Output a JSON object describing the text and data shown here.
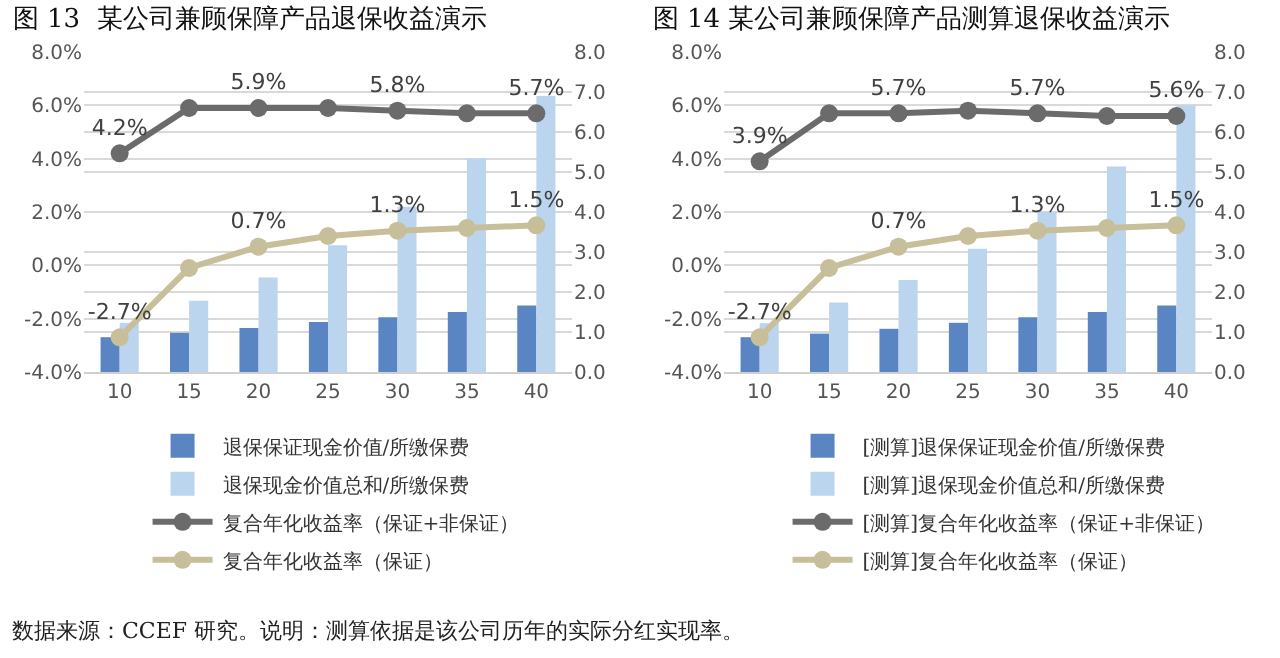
{
  "chart_data": [
    {
      "type": "bar",
      "title": "图 13  某公司兼顾保障产品退保收益演示",
      "categories": [
        "10",
        "15",
        "20",
        "25",
        "30",
        "35",
        "40"
      ],
      "series": [
        {
          "name": "退保保证现金价值/所缴保费",
          "axis": "y2",
          "color": "#5a85c3",
          "values": [
            0.87,
            0.98,
            1.1,
            1.25,
            1.37,
            1.5,
            1.66
          ]
        },
        {
          "name": "退保现金价值总和/所缴保费",
          "axis": "y2",
          "color": "#bcd5ee",
          "values": [
            1.23,
            1.78,
            2.36,
            3.17,
            4.13,
            5.34,
            6.9
          ]
        },
        {
          "name": "复合年化收益率（保证+非保证）",
          "type": "line",
          "axis": "y",
          "color": "#6b6b6b",
          "values": [
            4.2,
            5.9,
            5.9,
            5.9,
            5.8,
            5.7,
            5.7
          ],
          "value_labels": [
            "4.2%",
            null,
            "5.9%",
            null,
            "5.8%",
            null,
            "5.7%"
          ]
        },
        {
          "name": "复合年化收益率（保证）",
          "type": "line",
          "axis": "y",
          "color": "#c6bf9a",
          "values": [
            -2.7,
            -0.1,
            0.7,
            1.1,
            1.3,
            1.4,
            1.5
          ],
          "value_labels": [
            "-2.7%",
            null,
            "0.7%",
            null,
            "1.3%",
            null,
            "1.5%"
          ]
        }
      ],
      "ylim": [
        -4,
        8
      ],
      "yticks": [
        {
          "value": -4,
          "label": "-4.0%"
        },
        {
          "value": -2,
          "label": "-2.0%"
        },
        {
          "value": 0,
          "label": "0.0%"
        },
        {
          "value": 2,
          "label": "2.0%"
        },
        {
          "value": 4,
          "label": "4.0%"
        },
        {
          "value": 6,
          "label": "6.0%"
        },
        {
          "value": 8,
          "label": "8.0%"
        }
      ],
      "y2lim": [
        0,
        8
      ],
      "y2ticks": [
        {
          "value": 0,
          "label": "0.0"
        },
        {
          "value": 1,
          "label": "1.0"
        },
        {
          "value": 2,
          "label": "2.0"
        },
        {
          "value": 3,
          "label": "3.0"
        },
        {
          "value": 4,
          "label": "4.0"
        },
        {
          "value": 5,
          "label": "5.0"
        },
        {
          "value": 6,
          "label": "6.0"
        },
        {
          "value": 7,
          "label": "7.0"
        },
        {
          "value": 8,
          "label": "8.0"
        }
      ],
      "grid": "y",
      "legend": "bottom",
      "marker": "circle",
      "annotations": [
        "数据来源：CCEF 研究。说明：测算依据是该公司历年的实际分红实现率。"
      ]
    },
    {
      "type": "bar",
      "title": "图 14 某公司兼顾保障产品测算退保收益演示",
      "categories": [
        "10",
        "15",
        "20",
        "25",
        "30",
        "35",
        "40"
      ],
      "series": [
        {
          "name": "[测算]退保保证现金价值/所缴保费",
          "axis": "y2",
          "color": "#5a85c3",
          "values": [
            0.87,
            0.96,
            1.08,
            1.23,
            1.37,
            1.5,
            1.66
          ]
        },
        {
          "name": "[测算]退保现金价值总和/所缴保费",
          "axis": "y2",
          "color": "#bcd5ee",
          "values": [
            1.22,
            1.74,
            2.3,
            3.08,
            4.0,
            5.14,
            6.66
          ]
        },
        {
          "name": "[测算]复合年化收益率（保证+非保证）",
          "type": "line",
          "axis": "y",
          "color": "#6b6b6b",
          "values": [
            3.9,
            5.7,
            5.7,
            5.8,
            5.7,
            5.6,
            5.6
          ],
          "value_labels": [
            "3.9%",
            null,
            "5.7%",
            null,
            "5.7%",
            null,
            "5.6%"
          ]
        },
        {
          "name": "[测算]复合年化收益率（保证）",
          "type": "line",
          "axis": "y",
          "color": "#c6bf9a",
          "values": [
            -2.7,
            -0.1,
            0.7,
            1.1,
            1.3,
            1.4,
            1.5
          ],
          "value_labels": [
            "-2.7%",
            null,
            "0.7%",
            null,
            "1.3%",
            null,
            "1.5%"
          ]
        }
      ],
      "ylim": [
        -4,
        8
      ],
      "yticks": [
        {
          "value": -4,
          "label": "-4.0%"
        },
        {
          "value": -2,
          "label": "-2.0%"
        },
        {
          "value": 0,
          "label": "0.0%"
        },
        {
          "value": 2,
          "label": "2.0%"
        },
        {
          "value": 4,
          "label": "4.0%"
        },
        {
          "value": 6,
          "label": "6.0%"
        },
        {
          "value": 8,
          "label": "8.0%"
        }
      ],
      "y2lim": [
        0,
        8
      ],
      "y2ticks": [
        {
          "value": 0,
          "label": "0.0"
        },
        {
          "value": 1,
          "label": "1.0"
        },
        {
          "value": 2,
          "label": "2.0"
        },
        {
          "value": 3,
          "label": "3.0"
        },
        {
          "value": 4,
          "label": "4.0"
        },
        {
          "value": 5,
          "label": "5.0"
        },
        {
          "value": 6,
          "label": "6.0"
        },
        {
          "value": 7,
          "label": "7.0"
        },
        {
          "value": 8,
          "label": "8.0"
        }
      ],
      "grid": "y",
      "legend": "bottom",
      "marker": "circle"
    }
  ]
}
